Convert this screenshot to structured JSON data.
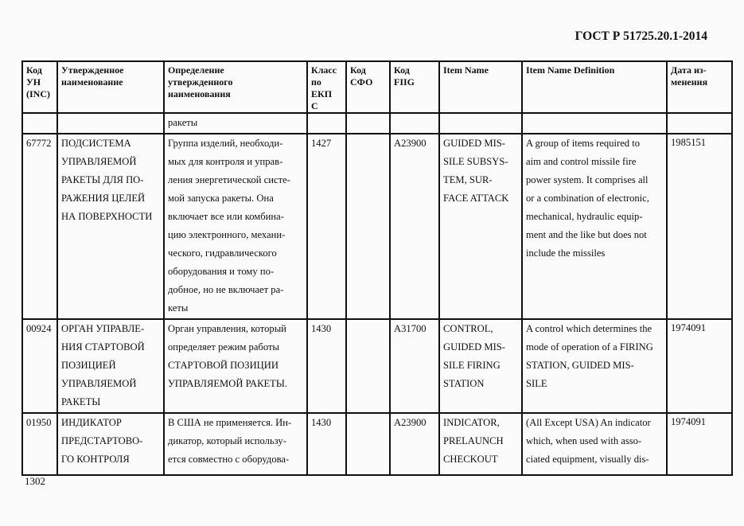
{
  "document": {
    "title": "ГОСТ Р 51725.20.1-2014",
    "page_number": "1302"
  },
  "table": {
    "headers": [
      "Код\nУН\n(INC)",
      "Утвержденное\nнаименование",
      "Определение\nутвержденного\nнаименования",
      "Класс\nпо\nЕКП\nС",
      "Код\nСФО",
      "Код\nFIIG",
      "Item Name",
      "Item Name Definition",
      "Дата из-\nменения"
    ],
    "rows": [
      [
        "",
        "",
        "ракеты",
        "",
        "",
        "",
        "",
        "",
        ""
      ],
      [
        "67772",
        "ПОДСИСТЕМА\nУПРАВЛЯЕМОЙ\nРАКЕТЫ ДЛЯ ПО-\nРАЖЕНИЯ ЦЕЛЕЙ\nНА ПОВЕРХНОСТИ",
        "Группа изделий, необходи-\nмых для контроля и управ-\nления энергетической систе-\nмой запуска ракеты. Она\nвключает все или комбина-\nцию электронного, механи-\nческого, гидравлического\nоборудования и  тому по-\nдобное, но не включает ра-\nкеты",
        "1427",
        "",
        "A23900",
        "GUIDED MIS-\nSILE SUBSYS-\nTEM, SUR-\nFACE ATTACK",
        "A group of items required to\naim and control missile fire\npower system.  It comprises all\nor a combination of electronic,\nmechanical, hydraulic equip-\nment and the like but does not\ninclude the missiles",
        "1985151"
      ],
      [
        "00924",
        "ОРГАН УПРАВЛЕ-\nНИЯ СТАРТОВОЙ\nПОЗИЦИЕЙ\nУПРАВЛЯЕМОЙ\nРАКЕТЫ",
        "Орган управления, который\nопределяет режим работы\nСТАРТОВОЙ ПОЗИЦИИ\nУПРАВЛЯЕМОЙ РАКЕТЫ.",
        "1430",
        "",
        "A31700",
        "CONTROL,\nGUIDED MIS-\nSILE FIRING\nSTATION",
        "A control which determines the\nmode of operation of a FIRING\nSTATION, GUIDED MIS-\nSILE",
        "1974091"
      ],
      [
        "01950",
        "ИНДИКАТОР\nПРЕДСТАРТОВО-\nГО КОНТРОЛЯ",
        "В США не применяется. Ин-\nдикатор, который использу-\nется совместно с оборудова-",
        "1430",
        "",
        "A23900",
        "INDICATOR,\nPRELAUNCH\nCHECKOUT",
        "(All Except USA) An indicator\nwhich, when used with asso-\nciated equipment, visually dis-",
        "1974091"
      ]
    ]
  }
}
